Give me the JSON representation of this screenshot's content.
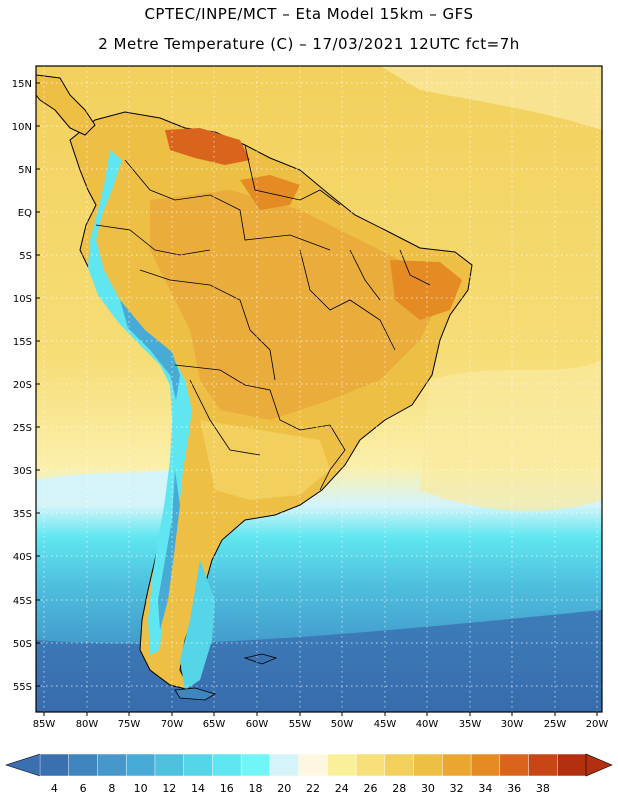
{
  "header": {
    "line1": "CPTEC/INPE/MCT –  Eta Model 15km – GFS",
    "line2": "2 Metre Temperature (C) – 17/03/2021 12UTC fct=7h"
  },
  "axes": {
    "lat_labels": [
      "15N",
      "10N",
      "5N",
      "EQ",
      "5S",
      "10S",
      "15S",
      "20S",
      "25S",
      "30S",
      "35S",
      "40S",
      "45S",
      "50S",
      "55S"
    ],
    "lon_labels": [
      "85W",
      "80W",
      "75W",
      "70W",
      "65W",
      "60W",
      "55W",
      "50W",
      "45W",
      "40W",
      "35W",
      "30W",
      "25W",
      "20W"
    ]
  },
  "colorbar": {
    "labels": [
      "4",
      "6",
      "8",
      "10",
      "12",
      "14",
      "16",
      "18",
      "20",
      "22",
      "24",
      "26",
      "28",
      "30",
      "32",
      "34",
      "36",
      "38"
    ],
    "colors": [
      "#3a6fb0",
      "#3f86bf",
      "#4598c9",
      "#47abd5",
      "#4fc1df",
      "#56d4e8",
      "#5fe6f0",
      "#72f5f6",
      "#d4f4fa",
      "#fdf7e0",
      "#fbf09a",
      "#f7e07a",
      "#f3cf5e",
      "#eebf45",
      "#eaa630",
      "#e48b23",
      "#d8651b",
      "#c74615",
      "#b23010"
    ]
  },
  "colors": {
    "land_border": "#000000",
    "frame": "#000000"
  }
}
